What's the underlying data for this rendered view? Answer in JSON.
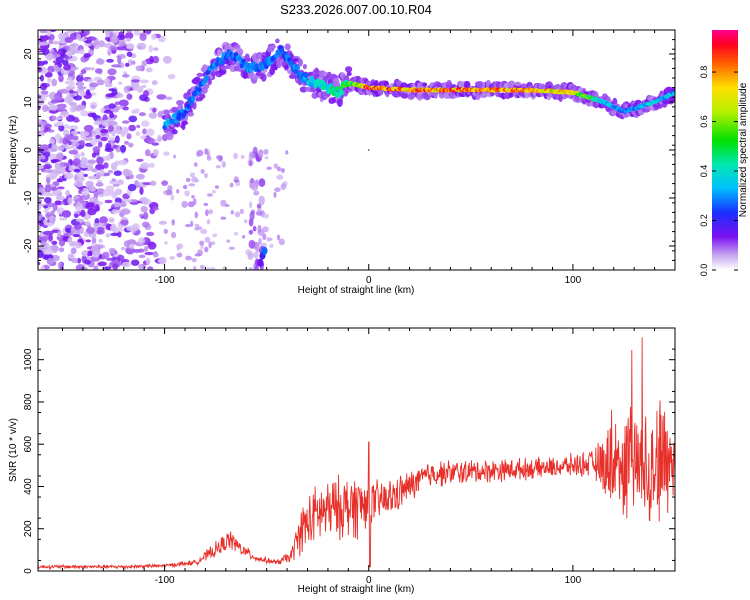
{
  "title": "S233.2026.007.00.10.R04",
  "chart_data": [
    {
      "type": "heatmap",
      "xlabel": "Height of straight line (km)",
      "ylabel": "Frequency (Hz)",
      "xlim": [
        -162,
        150
      ],
      "ylim": [
        -25,
        25
      ],
      "xticks": [
        -100,
        0,
        100
      ],
      "yticks": [
        -20,
        -10,
        0,
        10,
        20
      ],
      "colorbar": {
        "label": "Normalized spectral amplitude",
        "ticks": [
          "0.0",
          "0.2",
          "0.4",
          "0.6",
          "0.8"
        ],
        "ticks_values": [
          0.0,
          0.2,
          0.4,
          0.6,
          0.8
        ],
        "range": [
          0,
          0.97
        ]
      },
      "signal_track": {
        "x": [
          -100,
          -90,
          -83,
          -75,
          -68,
          -58,
          -50,
          -43,
          -38,
          -32,
          -26,
          -20,
          -15,
          -10,
          0,
          20,
          40,
          60,
          80,
          100,
          115,
          125,
          140,
          150
        ],
        "f": [
          5,
          8,
          13,
          18,
          20,
          17,
          18,
          21,
          18,
          15,
          14,
          13,
          12,
          14,
          13,
          12.5,
          12.5,
          12.5,
          12.5,
          12,
          10,
          8,
          10,
          12
        ],
        "amplitude": [
          0.35,
          0.3,
          0.3,
          0.3,
          0.3,
          0.3,
          0.3,
          0.3,
          0.3,
          0.35,
          0.4,
          0.45,
          0.5,
          0.55,
          0.9,
          0.85,
          0.9,
          0.9,
          0.85,
          0.75,
          0.4,
          0.3,
          0.4,
          0.35
        ]
      }
    },
    {
      "type": "line",
      "xlabel": "Height of straight line (km)",
      "ylabel": "SNR (10 * v/v)",
      "xlim": [
        -162,
        150
      ],
      "ylim": [
        0,
        1150
      ],
      "xticks": [
        -100,
        0,
        100
      ],
      "yticks": [
        0,
        200,
        400,
        600,
        800,
        1000
      ],
      "series": [
        {
          "name": "SNR",
          "color": "#e8302a",
          "envelope_x": [
            -162,
            -120,
            -100,
            -85,
            -75,
            -68,
            -62,
            -55,
            -45,
            -38,
            -33,
            -25,
            -15,
            -5,
            0,
            10,
            20,
            30,
            50,
            70,
            90,
            110,
            118,
            125,
            135,
            145,
            150
          ],
          "envelope_mean": [
            20,
            20,
            25,
            40,
            100,
            150,
            100,
            60,
            40,
            70,
            200,
            270,
            300,
            310,
            320,
            340,
            400,
            460,
            470,
            480,
            490,
            510,
            500,
            520,
            520,
            530,
            540
          ],
          "envelope_noise": [
            8,
            8,
            8,
            12,
            35,
            45,
            30,
            15,
            10,
            30,
            110,
            140,
            140,
            150,
            100,
            90,
            70,
            60,
            55,
            50,
            45,
            60,
            180,
            240,
            280,
            300,
            250
          ]
        }
      ]
    }
  ]
}
